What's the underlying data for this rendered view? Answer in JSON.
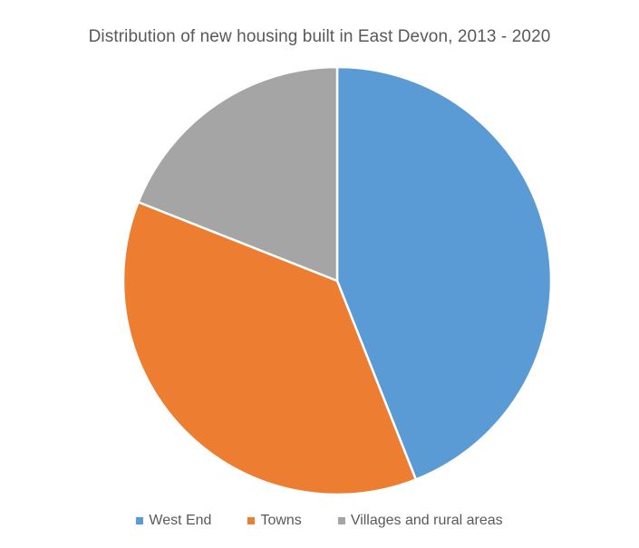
{
  "chart_data": {
    "type": "pie",
    "title": "Distribution of new housing built in East Devon, 2013 - 2020",
    "categories": [
      "West End",
      "Towns",
      "Villages and rural areas"
    ],
    "values": [
      44,
      37,
      19
    ],
    "colors": [
      "#5b9bd5",
      "#ed7d31",
      "#a5a5a5"
    ],
    "start_angle_deg": 0,
    "direction": "clockwise",
    "legend_position": "bottom"
  }
}
